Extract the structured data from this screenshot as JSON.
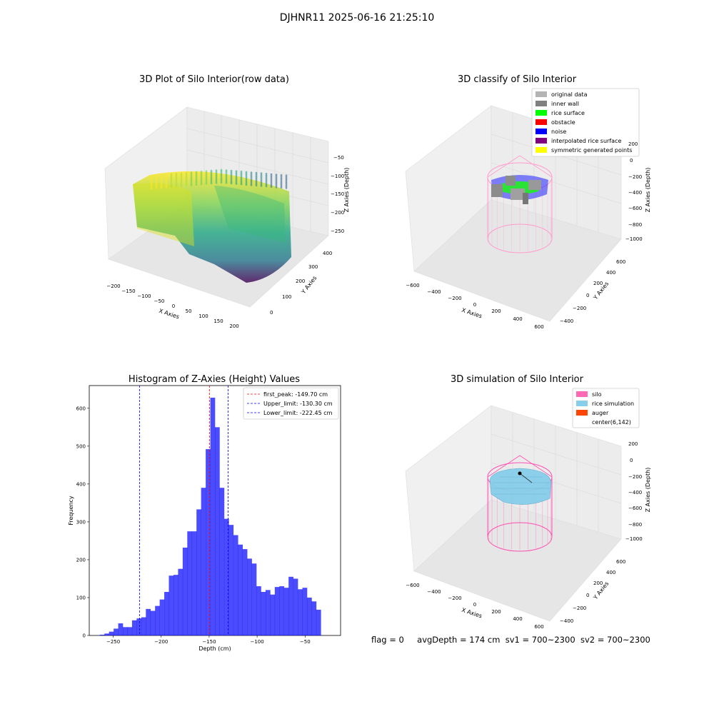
{
  "figure": {
    "suptitle": "DJHNR11 2025-06-16 21:25:10"
  },
  "panels": {
    "raw": {
      "title": "3D Plot of Silo Interior(row data)",
      "xlabel": "X Axies",
      "ylabel": "Y Axies",
      "zlabel": "Z Axies (Depth)",
      "x_ticks": [
        "−200",
        "−150",
        "−100",
        "−50",
        "0",
        "50",
        "100",
        "150",
        "200"
      ],
      "y_ticks": [
        "0",
        "100",
        "200",
        "300",
        "400"
      ],
      "z_ticks": [
        "−50",
        "−100",
        "−150",
        "−200",
        "−250"
      ],
      "colormap": "viridis"
    },
    "classify": {
      "title": "3D classify of Silo Interior",
      "xlabel": "X Axies",
      "ylabel": "Y Axies",
      "zlabel": "Z Axies (Depth)",
      "x_ticks": [
        "−600",
        "−400",
        "−200",
        "0",
        "200",
        "400",
        "600"
      ],
      "y_ticks": [
        "−400",
        "−200",
        "0",
        "200",
        "400",
        "600"
      ],
      "z_ticks": [
        "200",
        "0",
        "−200",
        "−400",
        "−600",
        "−800",
        "−1000"
      ],
      "legend": [
        {
          "label": "original data",
          "color": "#b4b4b4"
        },
        {
          "label": "inner wall",
          "color": "#808080"
        },
        {
          "label": "rice surface",
          "color": "#00ff00"
        },
        {
          "label": "obstacle",
          "color": "#ff0000"
        },
        {
          "label": "noise",
          "color": "#0000ff"
        },
        {
          "label": "interpolated rice surface",
          "color": "#800080"
        },
        {
          "label": "symmetric generated points",
          "color": "#ffff00"
        }
      ]
    },
    "simulation": {
      "title": "3D simulation of Silo Interior",
      "xlabel": "X Axies",
      "ylabel": "Y Axies",
      "zlabel": "Z Axies (Depth)",
      "x_ticks": [
        "−600",
        "−400",
        "−200",
        "0",
        "200",
        "400",
        "600"
      ],
      "y_ticks": [
        "−400",
        "−200",
        "0",
        "200",
        "400",
        "600"
      ],
      "z_ticks": [
        "200",
        "0",
        "−200",
        "−400",
        "−600",
        "−800",
        "−1000"
      ],
      "legend": [
        {
          "label": "silo",
          "color": "#ff69b4"
        },
        {
          "label": "rice simulation",
          "color": "#87ceeb"
        },
        {
          "label": "auger",
          "color": "#ff4500"
        },
        {
          "label": "center(6,142)",
          "color": ""
        }
      ]
    }
  },
  "status": {
    "flag": "flag = 0",
    "avg_depth": "avgDepth = 174 cm",
    "sv1": "sv1 = 700~2300",
    "sv2": "sv2 = 700~2300"
  },
  "chart_data": {
    "type": "bar",
    "title": "Histogram of Z-Axies (Height) Values",
    "xlabel": "Depth (cm)",
    "ylabel": "Frequency",
    "xlim": [
      -275,
      -13
    ],
    "ylim": [
      0,
      660
    ],
    "x_ticks": [
      -250,
      -200,
      -150,
      -100,
      -50
    ],
    "x_tick_labels": [
      "−250",
      "−200",
      "−150",
      "−100",
      "−50"
    ],
    "y_ticks": [
      0,
      100,
      200,
      300,
      400,
      500,
      600
    ],
    "bar_color": "#0000ff",
    "bin_start": -264,
    "bin_width": 4.8,
    "values": [
      2,
      5,
      10,
      18,
      32,
      22,
      22,
      40,
      45,
      48,
      70,
      65,
      78,
      95,
      115,
      158,
      160,
      176,
      232,
      275,
      275,
      333,
      390,
      492,
      628,
      550,
      390,
      308,
      292,
      265,
      240,
      228,
      203,
      190,
      130,
      115,
      120,
      108,
      128,
      130,
      126,
      155,
      150,
      122,
      126,
      100,
      90,
      68
    ],
    "lines": [
      {
        "name": "first_peak: -149.70 cm",
        "x": -149.7,
        "color": "#ff0000"
      },
      {
        "name": "Upper_limit: -130.30 cm",
        "x": -130.3,
        "color": "#0000ff"
      },
      {
        "name": "Lower_limit: -222.45 cm",
        "x": -222.45,
        "color": "#0000ff"
      }
    ],
    "legend_position": "top-right"
  }
}
